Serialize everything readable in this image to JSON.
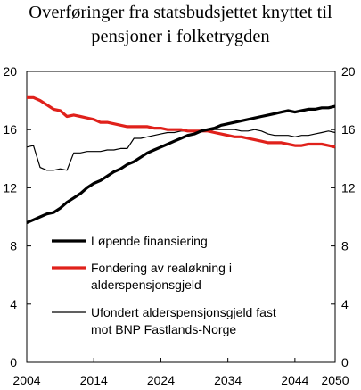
{
  "chart_data": {
    "type": "line",
    "title_lines": [
      "Overføringer fra statsbudsjettet knyttet til",
      "pensjoner i folketrygden"
    ],
    "xlabel": "",
    "ylabel": "",
    "xlim": [
      2004,
      2050
    ],
    "ylim": [
      0,
      20
    ],
    "x_ticks": [
      2004,
      2014,
      2024,
      2034,
      2044,
      2050
    ],
    "x_tick_labels": [
      "2004",
      "2014",
      "2024",
      "2034",
      "2044",
      "2050"
    ],
    "y_ticks": [
      0,
      4,
      8,
      12,
      16,
      20
    ],
    "y_tick_labels": [
      "0",
      "4",
      "8",
      "12",
      "16",
      "20"
    ],
    "grid": false,
    "legend": "inside-lower-left",
    "series": [
      {
        "name": "Løpende finansiering",
        "color": "#000000",
        "width": "thick",
        "x": [
          2004,
          2005,
          2006,
          2007,
          2008,
          2009,
          2010,
          2011,
          2012,
          2013,
          2014,
          2015,
          2016,
          2017,
          2018,
          2019,
          2020,
          2021,
          2022,
          2023,
          2024,
          2025,
          2026,
          2027,
          2028,
          2029,
          2030,
          2031,
          2032,
          2033,
          2034,
          2035,
          2036,
          2037,
          2038,
          2039,
          2040,
          2041,
          2042,
          2043,
          2044,
          2045,
          2046,
          2047,
          2048,
          2049,
          2050
        ],
        "values": [
          9.6,
          9.8,
          10.0,
          10.2,
          10.3,
          10.6,
          11.0,
          11.3,
          11.6,
          12.0,
          12.3,
          12.5,
          12.8,
          13.1,
          13.3,
          13.6,
          13.8,
          14.1,
          14.4,
          14.6,
          14.8,
          15.0,
          15.2,
          15.4,
          15.6,
          15.7,
          15.9,
          16.0,
          16.1,
          16.3,
          16.4,
          16.5,
          16.6,
          16.7,
          16.8,
          16.9,
          17.0,
          17.1,
          17.2,
          17.3,
          17.2,
          17.3,
          17.4,
          17.4,
          17.5,
          17.5,
          17.6
        ]
      },
      {
        "name": "Fondering av realøkning i alderspensjonsgjeld",
        "label_lines": [
          "Fondering av realøkning i",
          "alderspensjonsgjeld"
        ],
        "color": "#e0211b",
        "width": "thick",
        "x": [
          2004,
          2005,
          2006,
          2007,
          2008,
          2009,
          2010,
          2011,
          2012,
          2013,
          2014,
          2015,
          2016,
          2017,
          2018,
          2019,
          2020,
          2021,
          2022,
          2023,
          2024,
          2025,
          2026,
          2027,
          2028,
          2029,
          2030,
          2031,
          2032,
          2033,
          2034,
          2035,
          2036,
          2037,
          2038,
          2039,
          2040,
          2041,
          2042,
          2043,
          2044,
          2045,
          2046,
          2047,
          2048,
          2049,
          2050
        ],
        "values": [
          18.2,
          18.2,
          18.0,
          17.7,
          17.4,
          17.3,
          16.9,
          17.0,
          16.9,
          16.8,
          16.7,
          16.5,
          16.5,
          16.4,
          16.3,
          16.2,
          16.2,
          16.2,
          16.2,
          16.1,
          16.1,
          16.0,
          16.0,
          16.0,
          15.9,
          15.9,
          15.9,
          15.9,
          15.8,
          15.7,
          15.6,
          15.5,
          15.5,
          15.4,
          15.3,
          15.2,
          15.1,
          15.1,
          15.1,
          15.0,
          14.9,
          14.9,
          15.0,
          15.0,
          15.0,
          14.9,
          14.8
        ]
      },
      {
        "name": "Ufondert alderspensjonsgjeld fast mot BNP Fastlands-Norge",
        "label_lines": [
          "Ufondert alderspensjonsgjeld fast",
          "mot BNP Fastlands-Norge"
        ],
        "color": "#000000",
        "width": "thin",
        "x": [
          2004,
          2005,
          2006,
          2007,
          2008,
          2009,
          2010,
          2011,
          2012,
          2013,
          2014,
          2015,
          2016,
          2017,
          2018,
          2019,
          2020,
          2021,
          2022,
          2023,
          2024,
          2025,
          2026,
          2027,
          2028,
          2029,
          2030,
          2031,
          2032,
          2033,
          2034,
          2035,
          2036,
          2037,
          2038,
          2039,
          2040,
          2041,
          2042,
          2043,
          2044,
          2045,
          2046,
          2047,
          2048,
          2049,
          2050
        ],
        "values": [
          14.8,
          14.9,
          13.4,
          13.2,
          13.2,
          13.3,
          13.2,
          14.4,
          14.4,
          14.5,
          14.5,
          14.5,
          14.6,
          14.6,
          14.7,
          14.7,
          15.4,
          15.4,
          15.5,
          15.6,
          15.7,
          15.8,
          15.8,
          15.9,
          15.9,
          15.9,
          15.9,
          15.9,
          16.0,
          16.0,
          16.0,
          16.0,
          15.9,
          15.9,
          16.0,
          15.9,
          15.7,
          15.6,
          15.6,
          15.6,
          15.5,
          15.6,
          15.6,
          15.7,
          15.8,
          15.9,
          15.8
        ]
      }
    ]
  }
}
